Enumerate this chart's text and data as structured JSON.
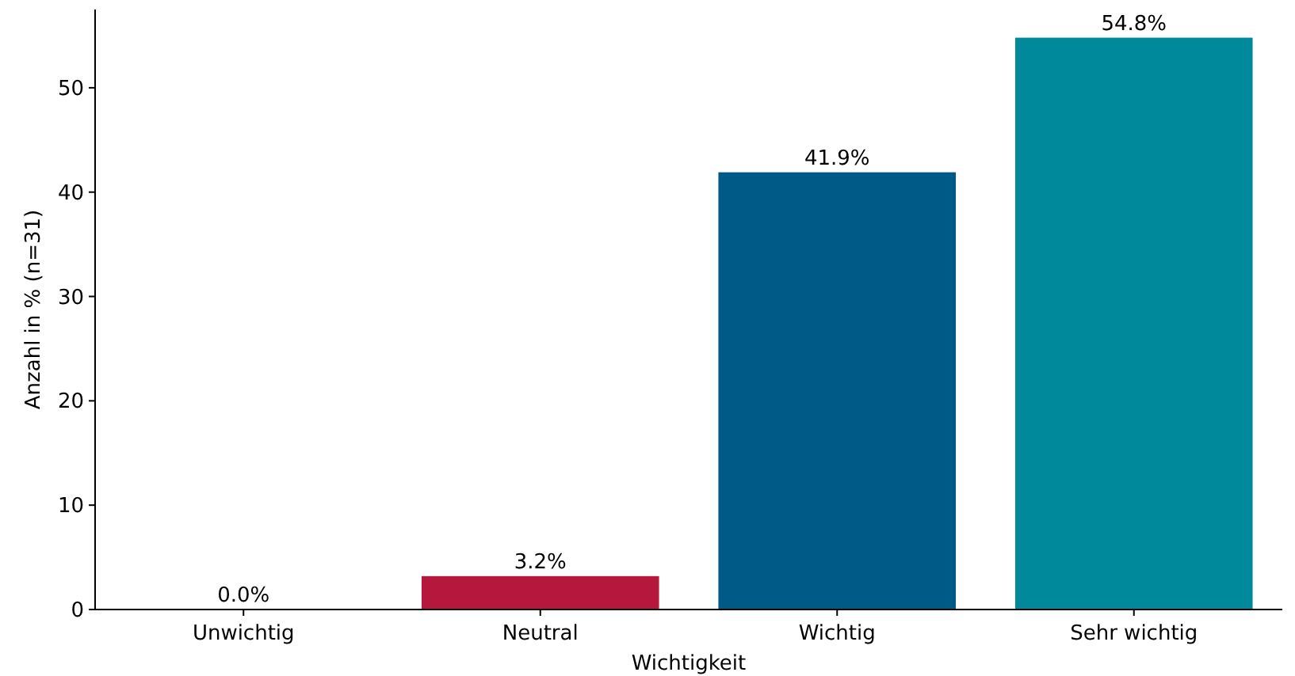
{
  "chart_data": {
    "type": "bar",
    "xlabel": "Wichtigkeit",
    "ylabel": "Anzahl in % (n=31)",
    "categories": [
      "Unwichtig",
      "Neutral",
      "Wichtig",
      "Sehr wichtig"
    ],
    "values": [
      0,
      3.2,
      41.9,
      54.8
    ],
    "colors": [
      "#7a7a7a",
      "#b5173d",
      "#005a87",
      "#00899b"
    ],
    "value_labels": [
      "0.0%",
      "3.2%",
      "41.9%",
      "54.8%"
    ],
    "ylim": [
      0,
      57.5
    ],
    "yticks": [
      0,
      10,
      20,
      30,
      40,
      50
    ]
  }
}
